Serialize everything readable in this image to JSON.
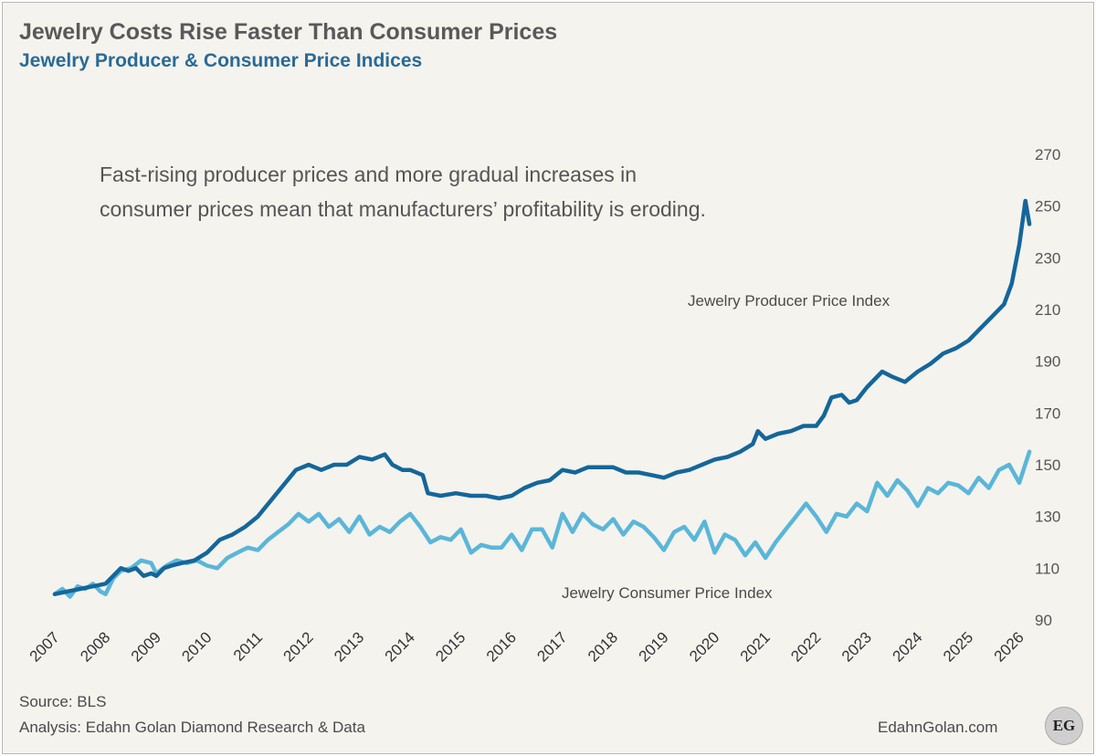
{
  "header": {
    "title": "Jewelry Costs Rise Faster Than Consumer Prices",
    "subtitle": "Jewelry Producer & Consumer Price Indices"
  },
  "footer": {
    "source": "Source:  BLS",
    "analysis": "Analysis: Edahn Golan Diamond Research & Data",
    "site": "EdahnGolan.com",
    "logo_text": "EG"
  },
  "colors": {
    "background": "#f4f3ee",
    "producer": "#14669a",
    "consumer": "#5ab6d8",
    "title": "#595959",
    "subtitle": "#2a6a96"
  },
  "chart_data": {
    "type": "line",
    "title": "Jewelry Costs Rise Faster Than Consumer Prices",
    "subtitle": "Jewelry Producer & Consumer Price Indices",
    "annotation": [
      "Fast-rising producer prices and more gradual increases in",
      "consumer prices mean that manufacturers’ profitability is eroding."
    ],
    "xlabel": "",
    "ylabel": "",
    "x_ticks": [
      "2007",
      "2008",
      "2009",
      "2010",
      "2011",
      "2012",
      "2013",
      "2014",
      "2015",
      "2016",
      "2017",
      "2018",
      "2019",
      "2020",
      "2021",
      "2022",
      "2023",
      "2024",
      "2025",
      "2026"
    ],
    "y_ticks": [
      90,
      110,
      130,
      150,
      170,
      190,
      210,
      230,
      250,
      270
    ],
    "ylim": [
      90,
      270
    ],
    "xlim": [
      2007,
      2026.25
    ],
    "y_axis_side": "right",
    "grid": false,
    "series": [
      {
        "name": "Jewelry Producer Price Index",
        "color": "#14669a",
        "width": 4.5,
        "points": [
          [
            2007.0,
            100
          ],
          [
            2007.25,
            101
          ],
          [
            2007.5,
            102
          ],
          [
            2007.75,
            103
          ],
          [
            2008.0,
            104
          ],
          [
            2008.15,
            107
          ],
          [
            2008.3,
            110
          ],
          [
            2008.45,
            109
          ],
          [
            2008.6,
            110
          ],
          [
            2008.75,
            107
          ],
          [
            2008.9,
            108
          ],
          [
            2009.0,
            107
          ],
          [
            2009.15,
            110
          ],
          [
            2009.3,
            111
          ],
          [
            2009.5,
            112
          ],
          [
            2009.75,
            113
          ],
          [
            2010.0,
            116
          ],
          [
            2010.25,
            121
          ],
          [
            2010.5,
            123
          ],
          [
            2010.75,
            126
          ],
          [
            2011.0,
            130
          ],
          [
            2011.25,
            136
          ],
          [
            2011.5,
            142
          ],
          [
            2011.75,
            148
          ],
          [
            2012.0,
            150
          ],
          [
            2012.25,
            148
          ],
          [
            2012.5,
            150
          ],
          [
            2012.75,
            150
          ],
          [
            2013.0,
            153
          ],
          [
            2013.25,
            152
          ],
          [
            2013.5,
            154
          ],
          [
            2013.65,
            150
          ],
          [
            2013.85,
            148
          ],
          [
            2014.0,
            148
          ],
          [
            2014.25,
            146
          ],
          [
            2014.35,
            139
          ],
          [
            2014.6,
            138
          ],
          [
            2014.9,
            139
          ],
          [
            2015.2,
            138
          ],
          [
            2015.5,
            138
          ],
          [
            2015.75,
            137
          ],
          [
            2016.0,
            138
          ],
          [
            2016.25,
            141
          ],
          [
            2016.5,
            143
          ],
          [
            2016.75,
            144
          ],
          [
            2017.0,
            148
          ],
          [
            2017.25,
            147
          ],
          [
            2017.5,
            149
          ],
          [
            2017.75,
            149
          ],
          [
            2018.0,
            149
          ],
          [
            2018.25,
            147
          ],
          [
            2018.5,
            147
          ],
          [
            2018.75,
            146
          ],
          [
            2019.0,
            145
          ],
          [
            2019.25,
            147
          ],
          [
            2019.5,
            148
          ],
          [
            2019.75,
            150
          ],
          [
            2020.0,
            152
          ],
          [
            2020.25,
            153
          ],
          [
            2020.5,
            155
          ],
          [
            2020.75,
            158
          ],
          [
            2020.85,
            163
          ],
          [
            2021.0,
            160
          ],
          [
            2021.25,
            162
          ],
          [
            2021.5,
            163
          ],
          [
            2021.75,
            165
          ],
          [
            2022.0,
            165
          ],
          [
            2022.15,
            169
          ],
          [
            2022.3,
            176
          ],
          [
            2022.5,
            177
          ],
          [
            2022.65,
            174
          ],
          [
            2022.8,
            175
          ],
          [
            2023.0,
            180
          ],
          [
            2023.15,
            183
          ],
          [
            2023.3,
            186
          ],
          [
            2023.5,
            184
          ],
          [
            2023.75,
            182
          ],
          [
            2024.0,
            186
          ],
          [
            2024.25,
            189
          ],
          [
            2024.5,
            193
          ],
          [
            2024.75,
            195
          ],
          [
            2025.0,
            198
          ],
          [
            2025.25,
            203
          ],
          [
            2025.5,
            208
          ],
          [
            2025.7,
            212
          ],
          [
            2025.85,
            220
          ],
          [
            2026.0,
            235
          ],
          [
            2026.12,
            252
          ],
          [
            2026.2,
            243
          ]
        ]
      },
      {
        "name": "Jewelry Consumer Price Index",
        "color": "#5ab6d8",
        "width": 4.5,
        "points": [
          [
            2007.0,
            100
          ],
          [
            2007.15,
            102
          ],
          [
            2007.3,
            99
          ],
          [
            2007.45,
            103
          ],
          [
            2007.6,
            102
          ],
          [
            2007.75,
            104
          ],
          [
            2007.9,
            101
          ],
          [
            2008.0,
            100
          ],
          [
            2008.15,
            106
          ],
          [
            2008.3,
            109
          ],
          [
            2008.5,
            110
          ],
          [
            2008.7,
            113
          ],
          [
            2008.9,
            112
          ],
          [
            2009.0,
            108
          ],
          [
            2009.2,
            111
          ],
          [
            2009.4,
            113
          ],
          [
            2009.6,
            112
          ],
          [
            2009.8,
            113
          ],
          [
            2010.0,
            111
          ],
          [
            2010.2,
            110
          ],
          [
            2010.4,
            114
          ],
          [
            2010.6,
            116
          ],
          [
            2010.8,
            118
          ],
          [
            2011.0,
            117
          ],
          [
            2011.2,
            121
          ],
          [
            2011.4,
            124
          ],
          [
            2011.6,
            127
          ],
          [
            2011.8,
            131
          ],
          [
            2012.0,
            128
          ],
          [
            2012.2,
            131
          ],
          [
            2012.4,
            126
          ],
          [
            2012.6,
            129
          ],
          [
            2012.8,
            124
          ],
          [
            2013.0,
            130
          ],
          [
            2013.2,
            123
          ],
          [
            2013.4,
            126
          ],
          [
            2013.6,
            124
          ],
          [
            2013.8,
            128
          ],
          [
            2014.0,
            131
          ],
          [
            2014.2,
            126
          ],
          [
            2014.4,
            120
          ],
          [
            2014.6,
            122
          ],
          [
            2014.8,
            121
          ],
          [
            2015.0,
            125
          ],
          [
            2015.2,
            116
          ],
          [
            2015.4,
            119
          ],
          [
            2015.6,
            118
          ],
          [
            2015.8,
            118
          ],
          [
            2016.0,
            123
          ],
          [
            2016.2,
            117
          ],
          [
            2016.4,
            125
          ],
          [
            2016.6,
            125
          ],
          [
            2016.8,
            118
          ],
          [
            2017.0,
            131
          ],
          [
            2017.2,
            124
          ],
          [
            2017.4,
            131
          ],
          [
            2017.6,
            127
          ],
          [
            2017.8,
            125
          ],
          [
            2018.0,
            129
          ],
          [
            2018.2,
            123
          ],
          [
            2018.4,
            128
          ],
          [
            2018.6,
            126
          ],
          [
            2018.8,
            122
          ],
          [
            2019.0,
            117
          ],
          [
            2019.2,
            124
          ],
          [
            2019.4,
            126
          ],
          [
            2019.6,
            121
          ],
          [
            2019.8,
            128
          ],
          [
            2020.0,
            116
          ],
          [
            2020.2,
            123
          ],
          [
            2020.4,
            121
          ],
          [
            2020.6,
            115
          ],
          [
            2020.8,
            120
          ],
          [
            2021.0,
            114
          ],
          [
            2021.2,
            120
          ],
          [
            2021.4,
            125
          ],
          [
            2021.6,
            130
          ],
          [
            2021.8,
            135
          ],
          [
            2022.0,
            130
          ],
          [
            2022.2,
            124
          ],
          [
            2022.4,
            131
          ],
          [
            2022.6,
            130
          ],
          [
            2022.8,
            135
          ],
          [
            2023.0,
            132
          ],
          [
            2023.2,
            143
          ],
          [
            2023.4,
            138
          ],
          [
            2023.6,
            144
          ],
          [
            2023.8,
            140
          ],
          [
            2024.0,
            134
          ],
          [
            2024.2,
            141
          ],
          [
            2024.4,
            139
          ],
          [
            2024.6,
            143
          ],
          [
            2024.8,
            142
          ],
          [
            2025.0,
            139
          ],
          [
            2025.2,
            145
          ],
          [
            2025.4,
            141
          ],
          [
            2025.6,
            148
          ],
          [
            2025.8,
            150
          ],
          [
            2026.0,
            143
          ],
          [
            2026.2,
            155
          ]
        ]
      }
    ],
    "series_labels": {
      "producer": "Jewelry Producer Price Index",
      "consumer": "Jewelry Consumer Price Index"
    }
  }
}
